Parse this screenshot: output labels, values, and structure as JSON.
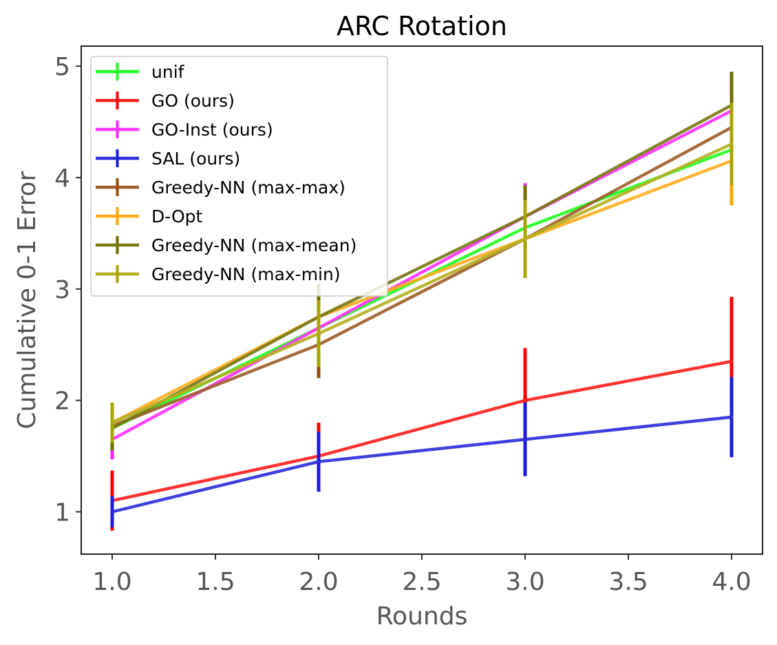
{
  "chart_data": {
    "type": "line",
    "title": "ARC Rotation",
    "xlabel": "Rounds",
    "ylabel": "Cumulative 0-1 Error",
    "xlim": [
      0.85,
      4.15
    ],
    "ylim": [
      0.62,
      5.18
    ],
    "xticks": [
      1.0,
      1.5,
      2.0,
      2.5,
      3.0,
      3.5,
      4.0
    ],
    "xtick_labels": [
      "1.0",
      "1.5",
      "2.0",
      "2.5",
      "3.0",
      "3.5",
      "4.0"
    ],
    "yticks": [
      1,
      2,
      3,
      4,
      5
    ],
    "ytick_labels": [
      "1",
      "2",
      "3",
      "4",
      "5"
    ],
    "grid": false,
    "legend_position": "top-left",
    "x": [
      1,
      2,
      3,
      4
    ],
    "series": [
      {
        "name": "unif",
        "color": "#22ff22",
        "errcolor": "#22ff22",
        "values": [
          1.75,
          2.65,
          3.55,
          4.25
        ],
        "err": [
          0.15,
          0.3,
          0.3,
          0.3
        ]
      },
      {
        "name": "GO (ours)",
        "color": "#ff2020",
        "errcolor": "#ff0000",
        "values": [
          1.1,
          1.5,
          2.0,
          2.35
        ],
        "err": [
          0.27,
          0.3,
          0.47,
          0.58
        ]
      },
      {
        "name": "GO-Inst (ours)",
        "color": "#ff33ff",
        "errcolor": "#ff22ff",
        "values": [
          1.65,
          2.65,
          3.65,
          4.6
        ],
        "err": [
          0.18,
          0.32,
          0.3,
          0.33
        ]
      },
      {
        "name": "SAL (ours)",
        "color": "#2e2ede",
        "errcolor": "#1a1adc",
        "values": [
          1.0,
          1.45,
          1.65,
          1.85
        ],
        "err": [
          0.14,
          0.27,
          0.33,
          0.36
        ]
      },
      {
        "name": "Greedy-NN (max-max)",
        "color": "#a0602b",
        "errcolor": "#9a4a08",
        "values": [
          1.77,
          2.5,
          3.45,
          4.45
        ],
        "err": [
          0.2,
          0.3,
          0.35,
          0.48
        ]
      },
      {
        "name": "D-Opt",
        "color": "#ffad22",
        "errcolor": "#ffa500",
        "values": [
          1.8,
          2.75,
          3.45,
          4.15
        ],
        "err": [
          0.18,
          0.3,
          0.35,
          0.4
        ]
      },
      {
        "name": "Greedy-NN (max-mean)",
        "color": "#7a7a16",
        "errcolor": "#6e6e00",
        "values": [
          1.75,
          2.75,
          3.65,
          4.65
        ],
        "err": [
          0.2,
          0.3,
          0.28,
          0.3
        ]
      },
      {
        "name": "Greedy-NN (max-min)",
        "color": "#b5b022",
        "errcolor": "#aaa400",
        "values": [
          1.8,
          2.6,
          3.45,
          4.3
        ],
        "err": [
          0.18,
          0.3,
          0.35,
          0.37
        ]
      }
    ]
  }
}
